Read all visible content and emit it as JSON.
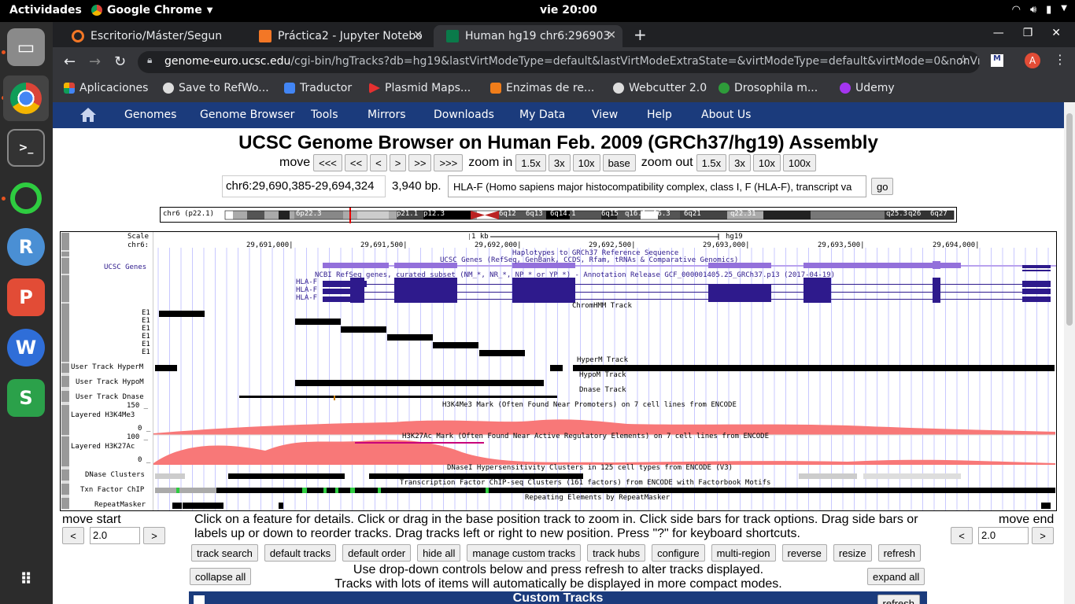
{
  "system": {
    "activities": "Actividades",
    "app_name": "Google Chrome",
    "clock": "vie 20:00"
  },
  "tabs": [
    {
      "label": "Escritorio/Máster/Segun",
      "active": false
    },
    {
      "label": "Práctica2 - Jupyter Notebo",
      "active": false
    },
    {
      "label": "Human hg19 chr6:296903",
      "active": true
    }
  ],
  "address": {
    "host": "genome-euro.ucsc.edu",
    "path": "/cgi-bin/hgTracks?db=hg19&lastVirtModeType=default&lastVirtModeExtraState=&virtModeType=default&virtMode=0&nonVirtPosit..."
  },
  "profile_initial": "A",
  "bookmarks": [
    "Aplicaciones",
    "Save to RefWo...",
    "Traductor",
    "Plasmid Maps...",
    "Enzimas de re...",
    "Webcutter 2.0",
    "Drosophila m...",
    "Udemy"
  ],
  "ucsc_nav": [
    "Genomes",
    "Genome Browser",
    "Tools",
    "Mirrors",
    "Downloads",
    "My Data",
    "View",
    "Help",
    "About Us"
  ],
  "title": "UCSC Genome Browser on Human Feb. 2009 (GRCh37/hg19) Assembly",
  "move": {
    "label": "move",
    "buttons": [
      "<<<",
      "<<",
      "<",
      ">",
      ">>",
      ">>>"
    ]
  },
  "zoom_in": {
    "label": "zoom in",
    "buttons": [
      "1.5x",
      "3x",
      "10x",
      "base"
    ]
  },
  "zoom_out": {
    "label": "zoom out",
    "buttons": [
      "1.5x",
      "3x",
      "10x",
      "100x"
    ]
  },
  "position": "chr6:29,690,385-29,694,324",
  "bp": "3,940 bp.",
  "search_value": "HLA-F (Homo sapiens major histocompatibility complex, class I, F (HLA-F), transcript va",
  "go": "go",
  "ideogram": {
    "chrom_label": "chr6 (p22.1)",
    "bands": [
      "6p22.3",
      "p21.1",
      "p12.3",
      "6q12",
      "6q13",
      "6q14.1",
      "6q15",
      "q16.1",
      "16.3",
      "6q21",
      "q22.31",
      "q25.3",
      "q26",
      "6q27"
    ]
  },
  "tracks": {
    "scale_label": "Scale",
    "chrom_label": "chr6:",
    "scale_text": "1 kb",
    "assembly": "hg19",
    "coords": [
      "29,691,000|",
      "29,691,500|",
      "29,692,000|",
      "29,692,500|",
      "29,693,000|",
      "29,693,500|",
      "29,694,000|"
    ],
    "haplo_title": "Haplotypes to GRCh37 Reference Sequence",
    "ucsc_genes_title": "UCSC Genes (RefSeq, GenBank, CCDS, Rfam, tRNAs & Comparative Genomics)",
    "ucsc_genes_label": "UCSC Genes",
    "refseq_title": "NCBI RefSeq genes, curated subset (NM_*, NR_*, NP_* or YP_*) - Annotation Release GCF_000001405.25_GRCh37.p13 (2017-04-19)",
    "hla_label": "HLA-F",
    "chromhmm_title": "ChromHMM Track",
    "e1_label": "E1",
    "hyperm_label": "User Track HyperM",
    "hyperm_title": "HyperM Track",
    "hypom_label": "User Track HypoM",
    "hypom_title": "HypoM Track",
    "dnase_label": "User Track Dnase",
    "dnase_title": "Dnase Track",
    "h3k4me3_title": "H3K4Me3 Mark (Often Found Near Promoters) on 7 cell lines from ENCODE",
    "h3k4me3_label": "Layered H3K4Me3",
    "h3k4me3_max": "150 _",
    "zero": "0 _",
    "h3k27ac_title": "H3K27Ac Mark (Often Found Near Active Regulatory Elements) on 7 cell lines from ENCODE",
    "h3k27ac_label": "Layered H3K27Ac",
    "h3k27ac_max": "100 _",
    "dnase_clusters_title": "DNaseI Hypersensitivity Clusters in 125 cell types from ENCODE (V3)",
    "dnase_clusters_label": "DNase Clusters",
    "txn_title": "Transcription Factor ChIP-seq Clusters (161 factors) from ENCODE with Factorbook Motifs",
    "txn_label": "Txn Factor ChIP",
    "repeat_title": "Repeating Elements by RepeatMasker",
    "repeat_label": "RepeatMasker"
  },
  "move_start": {
    "label": "move start",
    "value": "2.0",
    "left": "<",
    "right": ">"
  },
  "move_end": {
    "label": "move end",
    "value": "2.0",
    "left": "<",
    "right": ">"
  },
  "help_text": "Click on a feature for details. Click or drag in the base position track to zoom in. Click side bars for track options. Drag side bars or labels up or down to reorder tracks. Drag tracks left or right to new position. Press \"?\" for keyboard shortcuts.",
  "action_buttons": [
    "track search",
    "default tracks",
    "default order",
    "hide all",
    "manage custom tracks",
    "track hubs",
    "configure",
    "multi-region",
    "reverse",
    "resize",
    "refresh"
  ],
  "collapse_all": "collapse all",
  "expand_all": "expand all",
  "dropdown_note_1": "Use drop-down controls below and press refresh to alter tracks displayed.",
  "dropdown_note_2": "Tracks with lots of items will automatically be displayed in more compact modes.",
  "custom_tracks": "Custom Tracks",
  "refresh_small": "refresh",
  "colors": {
    "ucsc_blue": "#1b3b7c",
    "gene_light": "#9370db",
    "gene_dark": "#2e1a8c",
    "signal": "#f87878"
  }
}
